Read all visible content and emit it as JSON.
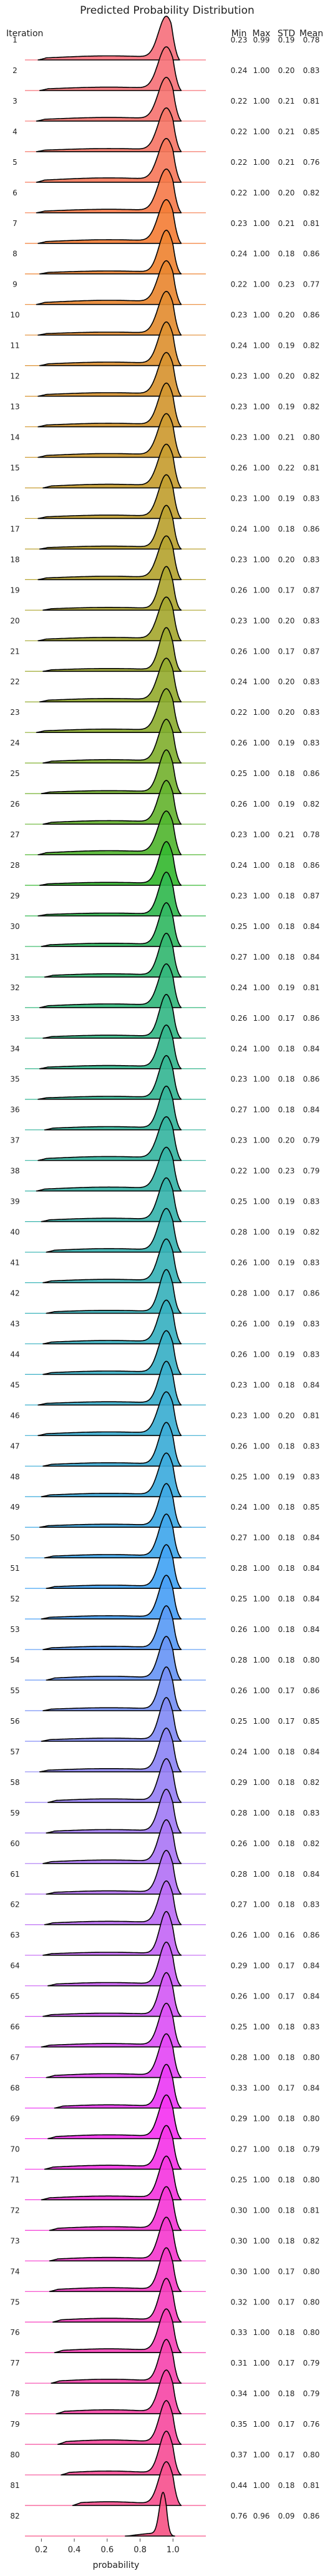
{
  "chart_data": {
    "type": "ridgeline",
    "title": "Predicted Probability Distribution",
    "xlabel": "probability",
    "xlim": [
      0.1,
      1.2
    ],
    "xticks": [
      0.2,
      0.4,
      0.6,
      0.8,
      1.0
    ],
    "xtick_labels": [
      "0.2",
      "0.4",
      "0.6",
      "0.8",
      "1.0"
    ],
    "row_header": "Iteration",
    "stat_headers": [
      "Min",
      "Max",
      "STD",
      "Mean"
    ],
    "grid": false,
    "legend": "none",
    "rows": [
      {
        "iteration": "1",
        "min": "0.23",
        "max": "0.99",
        "std": "0.19",
        "mean": "0.78",
        "color": "#f6727e"
      },
      {
        "iteration": "2",
        "min": "0.24",
        "max": "1.00",
        "std": "0.20",
        "mean": "0.83",
        "color": "#f6737a"
      },
      {
        "iteration": "3",
        "min": "0.22",
        "max": "1.00",
        "std": "0.21",
        "mean": "0.81",
        "color": "#f67572"
      },
      {
        "iteration": "4",
        "min": "0.22",
        "max": "1.00",
        "std": "0.21",
        "mean": "0.85",
        "color": "#f67768"
      },
      {
        "iteration": "5",
        "min": "0.22",
        "max": "1.00",
        "std": "0.21",
        "mean": "0.76",
        "color": "#f6795c"
      },
      {
        "iteration": "6",
        "min": "0.22",
        "max": "1.00",
        "std": "0.20",
        "mean": "0.82",
        "color": "#f67c4c"
      },
      {
        "iteration": "7",
        "min": "0.23",
        "max": "1.00",
        "std": "0.21",
        "mean": "0.81",
        "color": "#f47f38"
      },
      {
        "iteration": "8",
        "min": "0.24",
        "max": "1.00",
        "std": "0.18",
        "mean": "0.86",
        "color": "#ef8433"
      },
      {
        "iteration": "9",
        "min": "0.22",
        "max": "1.00",
        "std": "0.23",
        "mean": "0.77",
        "color": "#e98832"
      },
      {
        "iteration": "10",
        "min": "0.23",
        "max": "1.00",
        "std": "0.20",
        "mean": "0.86",
        "color": "#e38d32"
      },
      {
        "iteration": "11",
        "min": "0.24",
        "max": "1.00",
        "std": "0.19",
        "mean": "0.82",
        "color": "#dd9132"
      },
      {
        "iteration": "12",
        "min": "0.23",
        "max": "1.00",
        "std": "0.20",
        "mean": "0.82",
        "color": "#d79431"
      },
      {
        "iteration": "13",
        "min": "0.23",
        "max": "1.00",
        "std": "0.19",
        "mean": "0.82",
        "color": "#d29731"
      },
      {
        "iteration": "14",
        "min": "0.23",
        "max": "1.00",
        "std": "0.21",
        "mean": "0.80",
        "color": "#cd9a31"
      },
      {
        "iteration": "15",
        "min": "0.26",
        "max": "1.00",
        "std": "0.22",
        "mean": "0.81",
        "color": "#c79d31"
      },
      {
        "iteration": "16",
        "min": "0.23",
        "max": "1.00",
        "std": "0.19",
        "mean": "0.83",
        "color": "#c19f31"
      },
      {
        "iteration": "17",
        "min": "0.24",
        "max": "1.00",
        "std": "0.18",
        "mean": "0.86",
        "color": "#bba231"
      },
      {
        "iteration": "18",
        "min": "0.23",
        "max": "1.00",
        "std": "0.20",
        "mean": "0.83",
        "color": "#b5a431"
      },
      {
        "iteration": "19",
        "min": "0.26",
        "max": "1.00",
        "std": "0.17",
        "mean": "0.87",
        "color": "#aea631"
      },
      {
        "iteration": "20",
        "min": "0.23",
        "max": "1.00",
        "std": "0.20",
        "mean": "0.83",
        "color": "#a6a831"
      },
      {
        "iteration": "21",
        "min": "0.26",
        "max": "1.00",
        "std": "0.17",
        "mean": "0.87",
        "color": "#9eaa31"
      },
      {
        "iteration": "22",
        "min": "0.24",
        "max": "1.00",
        "std": "0.20",
        "mean": "0.83",
        "color": "#96ac31"
      },
      {
        "iteration": "23",
        "min": "0.22",
        "max": "1.00",
        "std": "0.20",
        "mean": "0.83",
        "color": "#8dae31"
      },
      {
        "iteration": "24",
        "min": "0.26",
        "max": "1.00",
        "std": "0.19",
        "mean": "0.83",
        "color": "#82b031"
      },
      {
        "iteration": "25",
        "min": "0.25",
        "max": "1.00",
        "std": "0.18",
        "mean": "0.86",
        "color": "#75b231"
      },
      {
        "iteration": "26",
        "min": "0.26",
        "max": "1.00",
        "std": "0.19",
        "mean": "0.82",
        "color": "#66b431"
      },
      {
        "iteration": "27",
        "min": "0.23",
        "max": "1.00",
        "std": "0.21",
        "mean": "0.78",
        "color": "#52b631"
      },
      {
        "iteration": "28",
        "min": "0.24",
        "max": "1.00",
        "std": "0.18",
        "mean": "0.86",
        "color": "#36b831"
      },
      {
        "iteration": "29",
        "min": "0.23",
        "max": "1.00",
        "std": "0.18",
        "mean": "0.87",
        "color": "#32b84f"
      },
      {
        "iteration": "30",
        "min": "0.25",
        "max": "1.00",
        "std": "0.18",
        "mean": "0.84",
        "color": "#33b863"
      },
      {
        "iteration": "31",
        "min": "0.27",
        "max": "1.00",
        "std": "0.18",
        "mean": "0.84",
        "color": "#34b771"
      },
      {
        "iteration": "32",
        "min": "0.24",
        "max": "1.00",
        "std": "0.19",
        "mean": "0.81",
        "color": "#34b77c"
      },
      {
        "iteration": "33",
        "min": "0.26",
        "max": "1.00",
        "std": "0.17",
        "mean": "0.86",
        "color": "#35b785"
      },
      {
        "iteration": "34",
        "min": "0.24",
        "max": "1.00",
        "std": "0.18",
        "mean": "0.84",
        "color": "#35b68d"
      },
      {
        "iteration": "35",
        "min": "0.23",
        "max": "1.00",
        "std": "0.18",
        "mean": "0.86",
        "color": "#36b694"
      },
      {
        "iteration": "36",
        "min": "0.27",
        "max": "1.00",
        "std": "0.18",
        "mean": "0.84",
        "color": "#36b59b"
      },
      {
        "iteration": "37",
        "min": "0.23",
        "max": "1.00",
        "std": "0.20",
        "mean": "0.79",
        "color": "#37b5a1"
      },
      {
        "iteration": "38",
        "min": "0.22",
        "max": "1.00",
        "std": "0.23",
        "mean": "0.79",
        "color": "#37b4a7"
      },
      {
        "iteration": "39",
        "min": "0.25",
        "max": "1.00",
        "std": "0.19",
        "mean": "0.83",
        "color": "#38b4ac"
      },
      {
        "iteration": "40",
        "min": "0.28",
        "max": "1.00",
        "std": "0.19",
        "mean": "0.82",
        "color": "#38b3b2"
      },
      {
        "iteration": "41",
        "min": "0.26",
        "max": "1.00",
        "std": "0.19",
        "mean": "0.83",
        "color": "#39b3b7"
      },
      {
        "iteration": "42",
        "min": "0.28",
        "max": "1.00",
        "std": "0.17",
        "mean": "0.86",
        "color": "#39b2bc"
      },
      {
        "iteration": "43",
        "min": "0.26",
        "max": "1.00",
        "std": "0.19",
        "mean": "0.83",
        "color": "#3ab1c1"
      },
      {
        "iteration": "44",
        "min": "0.26",
        "max": "1.00",
        "std": "0.19",
        "mean": "0.83",
        "color": "#3ab0c6"
      },
      {
        "iteration": "45",
        "min": "0.23",
        "max": "1.00",
        "std": "0.18",
        "mean": "0.84",
        "color": "#3bafcc"
      },
      {
        "iteration": "46",
        "min": "0.23",
        "max": "1.00",
        "std": "0.20",
        "mean": "0.81",
        "color": "#3caed1"
      },
      {
        "iteration": "47",
        "min": "0.26",
        "max": "1.00",
        "std": "0.18",
        "mean": "0.83",
        "color": "#3dadd7"
      },
      {
        "iteration": "48",
        "min": "0.25",
        "max": "1.00",
        "std": "0.19",
        "mean": "0.83",
        "color": "#3eabdd"
      },
      {
        "iteration": "49",
        "min": "0.24",
        "max": "1.00",
        "std": "0.18",
        "mean": "0.85",
        "color": "#3fa9e4"
      },
      {
        "iteration": "50",
        "min": "0.27",
        "max": "1.00",
        "std": "0.18",
        "mean": "0.84",
        "color": "#41a7ec"
      },
      {
        "iteration": "51",
        "min": "0.28",
        "max": "1.00",
        "std": "0.18",
        "mean": "0.84",
        "color": "#43a4f4"
      },
      {
        "iteration": "52",
        "min": "0.25",
        "max": "1.00",
        "std": "0.18",
        "mean": "0.84",
        "color": "#4aa0f5"
      },
      {
        "iteration": "53",
        "min": "0.26",
        "max": "1.00",
        "std": "0.18",
        "mean": "0.84",
        "color": "#5a9bf5"
      },
      {
        "iteration": "54",
        "min": "0.28",
        "max": "1.00",
        "std": "0.18",
        "mean": "0.80",
        "color": "#6996f5"
      },
      {
        "iteration": "55",
        "min": "0.26",
        "max": "1.00",
        "std": "0.17",
        "mean": "0.86",
        "color": "#7791f5"
      },
      {
        "iteration": "56",
        "min": "0.25",
        "max": "1.00",
        "std": "0.17",
        "mean": "0.85",
        "color": "#838cf5"
      },
      {
        "iteration": "57",
        "min": "0.24",
        "max": "1.00",
        "std": "0.18",
        "mean": "0.84",
        "color": "#8e87f5"
      },
      {
        "iteration": "58",
        "min": "0.29",
        "max": "1.00",
        "std": "0.18",
        "mean": "0.82",
        "color": "#9882f5"
      },
      {
        "iteration": "59",
        "min": "0.28",
        "max": "1.00",
        "std": "0.18",
        "mean": "0.83",
        "color": "#a27df5"
      },
      {
        "iteration": "60",
        "min": "0.26",
        "max": "1.00",
        "std": "0.18",
        "mean": "0.82",
        "color": "#ab78f5"
      },
      {
        "iteration": "61",
        "min": "0.28",
        "max": "1.00",
        "std": "0.18",
        "mean": "0.84",
        "color": "#b373f5"
      },
      {
        "iteration": "62",
        "min": "0.27",
        "max": "1.00",
        "std": "0.18",
        "mean": "0.83",
        "color": "#bc6ef5"
      },
      {
        "iteration": "63",
        "min": "0.26",
        "max": "1.00",
        "std": "0.16",
        "mean": "0.86",
        "color": "#c468f5"
      },
      {
        "iteration": "64",
        "min": "0.29",
        "max": "1.00",
        "std": "0.17",
        "mean": "0.84",
        "color": "#cc62f5"
      },
      {
        "iteration": "65",
        "min": "0.26",
        "max": "1.00",
        "std": "0.17",
        "mean": "0.84",
        "color": "#d45bf5"
      },
      {
        "iteration": "66",
        "min": "0.25",
        "max": "1.00",
        "std": "0.18",
        "mean": "0.83",
        "color": "#dc53f5"
      },
      {
        "iteration": "67",
        "min": "0.28",
        "max": "1.00",
        "std": "0.18",
        "mean": "0.80",
        "color": "#e449f5"
      },
      {
        "iteration": "68",
        "min": "0.33",
        "max": "1.00",
        "std": "0.17",
        "mean": "0.84",
        "color": "#ec3cf5"
      },
      {
        "iteration": "69",
        "min": "0.29",
        "max": "1.00",
        "std": "0.18",
        "mean": "0.80",
        "color": "#f534f1"
      },
      {
        "iteration": "70",
        "min": "0.27",
        "max": "1.00",
        "std": "0.18",
        "mean": "0.79",
        "color": "#f536e8"
      },
      {
        "iteration": "71",
        "min": "0.25",
        "max": "1.00",
        "std": "0.18",
        "mean": "0.80",
        "color": "#f538df"
      },
      {
        "iteration": "72",
        "min": "0.30",
        "max": "1.00",
        "std": "0.18",
        "mean": "0.81",
        "color": "#f53ad7"
      },
      {
        "iteration": "73",
        "min": "0.30",
        "max": "1.00",
        "std": "0.18",
        "mean": "0.82",
        "color": "#f53ccf"
      },
      {
        "iteration": "74",
        "min": "0.30",
        "max": "1.00",
        "std": "0.17",
        "mean": "0.80",
        "color": "#f53ec7"
      },
      {
        "iteration": "75",
        "min": "0.32",
        "max": "1.00",
        "std": "0.17",
        "mean": "0.80",
        "color": "#f641bf"
      },
      {
        "iteration": "76",
        "min": "0.33",
        "max": "1.00",
        "std": "0.18",
        "mean": "0.80",
        "color": "#f643b7"
      },
      {
        "iteration": "77",
        "min": "0.31",
        "max": "1.00",
        "std": "0.17",
        "mean": "0.79",
        "color": "#f646af"
      },
      {
        "iteration": "78",
        "min": "0.34",
        "max": "1.00",
        "std": "0.18",
        "mean": "0.79",
        "color": "#f649a7"
      },
      {
        "iteration": "79",
        "min": "0.35",
        "max": "1.00",
        "std": "0.17",
        "mean": "0.76",
        "color": "#f64c9f"
      },
      {
        "iteration": "80",
        "min": "0.37",
        "max": "1.00",
        "std": "0.17",
        "mean": "0.80",
        "color": "#f64f97"
      },
      {
        "iteration": "81",
        "min": "0.44",
        "max": "1.00",
        "std": "0.18",
        "mean": "0.81",
        "color": "#f6528f"
      },
      {
        "iteration": "82",
        "min": "0.76",
        "max": "0.96",
        "std": "0.09",
        "mean": "0.86",
        "color": "#f65586"
      }
    ]
  }
}
